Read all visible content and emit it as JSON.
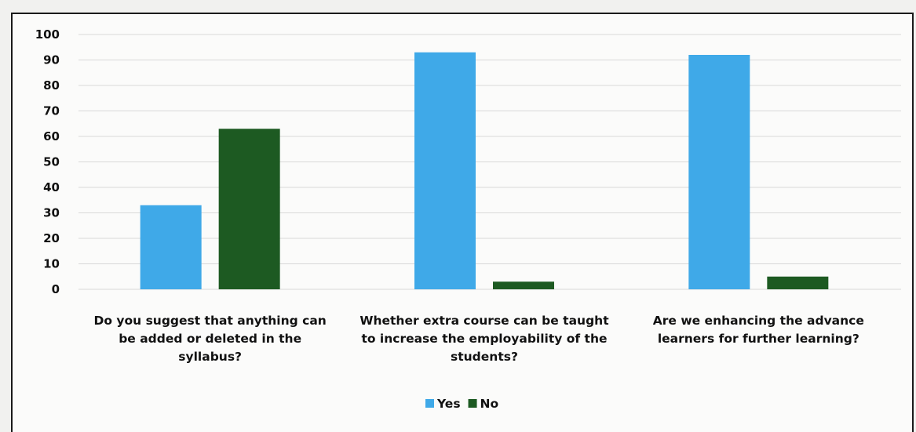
{
  "chart_data": {
    "type": "bar",
    "categories": [
      [
        "Do you suggest that anything can",
        "be added or deleted in the",
        "syllabus?"
      ],
      [
        "Whether extra course can be taught",
        "to increase the employability of the",
        "students?"
      ],
      [
        "Are we enhancing the advance",
        "learners for further learning?"
      ]
    ],
    "series": [
      {
        "name": "Yes",
        "values": [
          33,
          93,
          92
        ],
        "color": "#3fa9e8"
      },
      {
        "name": "No",
        "values": [
          63,
          3,
          5
        ],
        "color": "#1d5a22"
      }
    ],
    "ylim": [
      0,
      100
    ],
    "yticks": [
      0,
      10,
      20,
      30,
      40,
      50,
      60,
      70,
      80,
      90,
      100
    ],
    "grid": true,
    "legend_position": "bottom-center"
  }
}
